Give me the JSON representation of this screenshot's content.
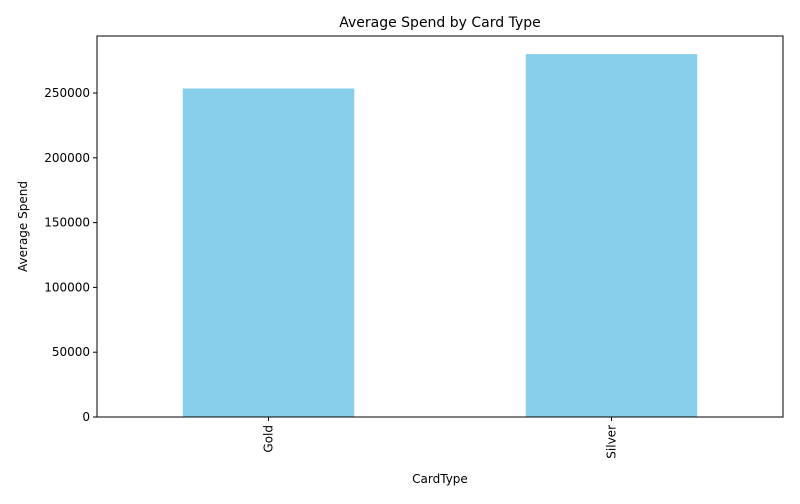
{
  "chart_data": {
    "type": "bar",
    "title": "Average Spend by Card Type",
    "xlabel": "CardType",
    "ylabel": "Average Spend",
    "categories": [
      "Gold",
      "Silver"
    ],
    "values": [
      253500,
      280000
    ],
    "ylim": [
      0,
      294000
    ],
    "yticks": [
      0,
      50000,
      100000,
      150000,
      200000,
      250000
    ],
    "bar_color": "#87CEEB",
    "grid": false,
    "legend": "none"
  }
}
